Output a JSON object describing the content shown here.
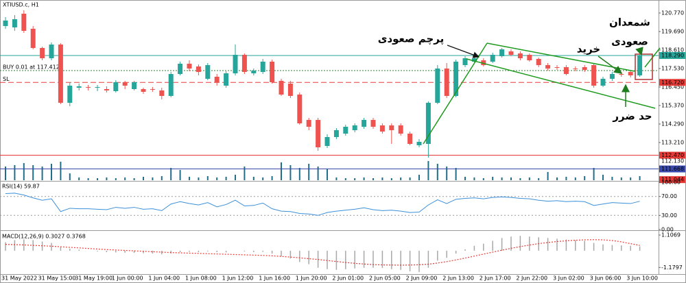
{
  "chart_data": [
    {
      "type": "candlestick",
      "title": "XTIUSD.c, H1",
      "categories": [
        "31 May 2022",
        null,
        null,
        null,
        "31 May 15:00",
        null,
        null,
        null,
        "31 May 19:00",
        null,
        null,
        null,
        "1 Jun 00:00",
        null,
        null,
        null,
        "1 Jun 04:00",
        null,
        null,
        null,
        "1 Jun 08:00",
        null,
        null,
        null,
        "1 Jun 12:00",
        null,
        null,
        null,
        "1 Jun 16:00",
        null,
        null,
        null,
        "1 Jun 20:00",
        null,
        null,
        null,
        "2 Jun 01:00",
        null,
        null,
        null,
        "2 Jun 05:00",
        null,
        null,
        null,
        "2 Jun 09:00",
        null,
        null,
        null,
        "2 Jun 13:00",
        null,
        null,
        null,
        "2 Jun 17:00",
        null,
        null,
        null,
        "2 Jun 22:00",
        null,
        null,
        null,
        "3 Jun 02:00",
        null,
        null,
        null,
        "3 Jun 06:00",
        null,
        null,
        null,
        "3 Jun 10:00",
        null
      ],
      "open": [
        120.01,
        119.93,
        120.73,
        119.85,
        118.73,
        118.13,
        118.93,
        115.53,
        116.41,
        116.45,
        116.41,
        116.33,
        116.21,
        116.73,
        116.33,
        116.33,
        116.33,
        116.25,
        115.93,
        117.21,
        117.81,
        117.65,
        116.93,
        117.05,
        116.53,
        117.25,
        118.33,
        117.25,
        117.33,
        117.93,
        116.81,
        116.65,
        116.01,
        114.53,
        114.53,
        113.01,
        113.53,
        113.73,
        113.93,
        114.13,
        114.53,
        114.21,
        114.21,
        114.21,
        113.73,
        113.05,
        113.13,
        115.53,
        117.53,
        115.93,
        117.73,
        117.93,
        118.01,
        117.93,
        118.25,
        118.53,
        118.41,
        118.33,
        118.09,
        117.73,
        117.61,
        117.61,
        117.53,
        117.61,
        117.73,
        116.53,
        116.93,
        117.21,
        117.33,
        117.13
      ],
      "high": [
        120.53,
        120.65,
        120.93,
        120.01,
        118.81,
        119.05,
        119.01,
        116.73,
        116.65,
        116.57,
        116.57,
        116.49,
        116.85,
        116.81,
        116.81,
        116.41,
        116.45,
        116.41,
        117.33,
        117.93,
        118.01,
        117.77,
        117.85,
        117.21,
        117.37,
        118.93,
        118.41,
        117.53,
        118.09,
        118.05,
        116.93,
        116.81,
        116.13,
        114.65,
        114.65,
        113.69,
        114.05,
        114.25,
        114.33,
        114.65,
        114.65,
        114.33,
        114.33,
        114.33,
        113.85,
        113.41,
        115.61,
        117.73,
        117.85,
        118.05,
        118.25,
        118.25,
        118.13,
        118.45,
        118.73,
        118.65,
        118.53,
        118.41,
        118.17,
        117.85,
        117.73,
        117.73,
        117.65,
        117.73,
        117.81,
        117.05,
        117.33,
        117.33,
        117.45,
        118.33
      ],
      "low": [
        119.85,
        119.73,
        119.61,
        118.65,
        118.01,
        118.01,
        115.45,
        115.33,
        116.25,
        116.25,
        116.21,
        116.13,
        116.13,
        116.33,
        116.25,
        116.05,
        116.17,
        115.73,
        115.85,
        117.13,
        117.37,
        117.13,
        116.85,
        116.53,
        116.41,
        117.13,
        117.21,
        117.13,
        117.21,
        116.65,
        115.93,
        115.81,
        114.25,
        113.93,
        112.73,
        112.89,
        113.41,
        113.61,
        113.81,
        114.01,
        114.01,
        113.73,
        113.13,
        113.61,
        113.05,
        112.93,
        112.33,
        115.45,
        115.81,
        115.85,
        117.61,
        117.81,
        117.65,
        117.85,
        118.17,
        118.25,
        118.01,
        117.93,
        117.61,
        117.41,
        117.45,
        117.13,
        117.37,
        117.33,
        116.41,
        116.45,
        116.81,
        117.05,
        117.01,
        117.05
      ],
      "close": [
        120.33,
        120.41,
        119.73,
        118.73,
        118.13,
        118.93,
        115.53,
        116.53,
        116.49,
        116.41,
        116.45,
        116.25,
        116.73,
        116.53,
        116.73,
        116.17,
        116.29,
        115.93,
        117.21,
        117.81,
        117.53,
        117.33,
        117.73,
        116.73,
        117.25,
        118.33,
        117.33,
        117.41,
        117.93,
        116.73,
        116.01,
        115.93,
        114.33,
        114.13,
        112.93,
        113.53,
        113.93,
        114.13,
        114.21,
        114.53,
        114.13,
        113.85,
        113.93,
        113.73,
        113.13,
        113.25,
        115.53,
        117.53,
        115.93,
        117.93,
        118.13,
        118.13,
        117.73,
        118.33,
        118.65,
        118.33,
        118.13,
        118.01,
        117.73,
        117.53,
        117.57,
        117.21,
        117.49,
        117.45,
        116.53,
        116.93,
        117.21,
        117.17,
        117.13,
        118.29
      ],
      "up_color": "#26a69a",
      "down_color": "#ef5350",
      "volume": [
        20,
        22,
        25,
        22,
        20,
        24,
        27,
        10,
        4,
        3,
        3,
        4,
        3,
        4,
        3,
        5,
        4,
        6,
        18,
        15,
        5,
        4,
        6,
        4,
        5,
        8,
        20,
        5,
        4,
        6,
        26,
        22,
        18,
        24,
        20,
        16,
        4,
        3,
        3,
        4,
        3,
        4,
        3,
        4,
        4,
        8,
        28,
        24,
        20,
        18,
        5,
        4,
        3,
        5,
        4,
        4,
        3,
        4,
        3,
        12,
        4,
        5,
        4,
        6,
        18,
        8,
        5,
        4,
        4,
        6
      ],
      "volume_ylim": [
        0,
        40
      ],
      "volume_color": "#1f6f8b",
      "ylim": [
        110.97,
        121.53
      ],
      "yticks": [
        {
          "value": 120.77,
          "label": "120.770"
        },
        {
          "value": 119.69,
          "label": "119.690"
        },
        {
          "value": 118.61,
          "label": "118.610"
        },
        {
          "value": 117.53,
          "label": "117.530"
        },
        {
          "value": 116.45,
          "label": "116.450"
        },
        {
          "value": 115.37,
          "label": "115.370"
        },
        {
          "value": 114.29,
          "label": "114.290"
        },
        {
          "value": 113.21,
          "label": "113.210"
        }
      ],
      "levels": [
        {
          "value": 118.29,
          "label": "118.290",
          "color": "#26a69a",
          "style": "solid"
        },
        {
          "value": 117.412,
          "tag": "BUY 0.01 at 117.412",
          "color": "#2e7d32",
          "style": "dotted"
        },
        {
          "value": 116.72,
          "label": "116.720",
          "tag": "SL",
          "color": "#e53935",
          "style": "dashed"
        },
        {
          "value": 112.47,
          "label": "112.470",
          "color": "#e53935",
          "style": "solid"
        },
        {
          "value": 112.13,
          "label": "112.130"
        },
        {
          "value": 111.668,
          "label": "111.668",
          "color": "#3949ab",
          "style": "solid"
        },
        {
          "value": 111.044,
          "label": "111.044",
          "color": "#e53935"
        }
      ],
      "annotations": [
        "پرچم صعودی",
        "خرید",
        "شمعدان",
        "صعودی",
        "حد ضرر"
      ]
    },
    {
      "type": "line",
      "title": "RSI(14) 59.87",
      "color": "#3a8fd9",
      "values": [
        76,
        77,
        73,
        67,
        62,
        65,
        38,
        45,
        44,
        44,
        43,
        42,
        47,
        45,
        47,
        43,
        44,
        40,
        54,
        59,
        55,
        52,
        57,
        48,
        53,
        62,
        50,
        51,
        56,
        44,
        39,
        38,
        34,
        33,
        30,
        36,
        39,
        41,
        43,
        46,
        42,
        40,
        41,
        39,
        36,
        37,
        52,
        63,
        55,
        64,
        66,
        67,
        65,
        68,
        69,
        68,
        66,
        65,
        62,
        60,
        61,
        59,
        60,
        59,
        51,
        54,
        57,
        56,
        55,
        59.87
      ],
      "ylim": [
        0,
        100
      ],
      "yticks": [
        {
          "value": 100,
          "label": "100.00"
        },
        {
          "value": 70,
          "label": "70.00"
        },
        {
          "value": 30,
          "label": "30.00"
        },
        {
          "value": 0,
          "label": "0.00"
        }
      ],
      "levels": [
        70,
        30
      ]
    },
    {
      "type": "macd",
      "title": "MACD(12,26,9) 0.3027 0.3768",
      "color": "#a8a8a8",
      "signal_color": "#e53935",
      "values": [
        0.6,
        0.75,
        0.8,
        0.75,
        0.65,
        0.55,
        0.25,
        0.15,
        0.08,
        0.0,
        -0.05,
        -0.1,
        -0.12,
        -0.14,
        -0.15,
        -0.18,
        -0.2,
        -0.25,
        -0.2,
        -0.1,
        -0.08,
        -0.1,
        -0.05,
        -0.1,
        -0.12,
        0.0,
        -0.05,
        -0.1,
        -0.08,
        -0.2,
        -0.4,
        -0.55,
        -0.8,
        -0.95,
        -1.2,
        -1.3,
        -1.35,
        -1.3,
        -1.25,
        -1.2,
        -1.2,
        -1.22,
        -1.3,
        -1.35,
        -1.45,
        -1.5,
        -1.2,
        -0.7,
        -0.5,
        -0.2,
        0.1,
        0.35,
        0.5,
        0.7,
        0.9,
        1.0,
        1.05,
        1.0,
        0.95,
        0.9,
        0.85,
        0.8,
        0.75,
        0.7,
        0.55,
        0.45,
        0.4,
        0.38,
        0.35,
        0.3027
      ],
      "signal": [
        0.45,
        0.43,
        0.41,
        0.38,
        0.35,
        0.32,
        0.28,
        0.24,
        0.2,
        0.16,
        0.12,
        0.08,
        0.05,
        0.02,
        -0.01,
        -0.04,
        -0.07,
        -0.1,
        -0.13,
        -0.15,
        -0.17,
        -0.19,
        -0.21,
        -0.23,
        -0.25,
        -0.27,
        -0.29,
        -0.31,
        -0.33,
        -0.36,
        -0.4,
        -0.45,
        -0.5,
        -0.56,
        -0.62,
        -0.69,
        -0.76,
        -0.83,
        -0.89,
        -0.94,
        -0.98,
        -1.0,
        -1.01,
        -1.02,
        -1.01,
        -0.99,
        -0.95,
        -0.87,
        -0.77,
        -0.65,
        -0.52,
        -0.38,
        -0.24,
        -0.1,
        0.04,
        0.17,
        0.29,
        0.4,
        0.5,
        0.58,
        0.65,
        0.7,
        0.74,
        0.77,
        0.78,
        0.77,
        0.72,
        0.63,
        0.5,
        0.3768
      ],
      "ylim": [
        -1.65,
        1.35
      ],
      "yticks": [
        1.1069,
        -1.1797
      ]
    }
  ]
}
